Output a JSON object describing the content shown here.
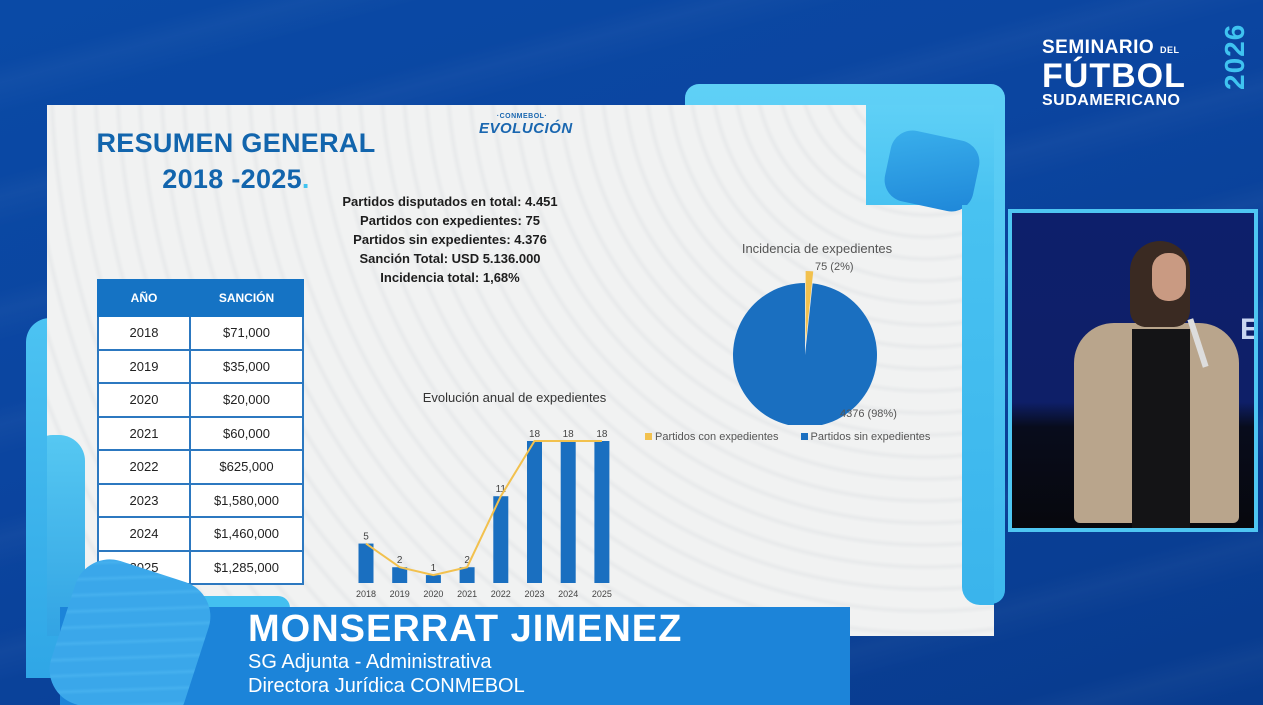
{
  "event_brand": {
    "line1": "SEMINARIO",
    "line1_suffix": "DEL",
    "line2": "FÚTBOL",
    "line3": "SUDAMERICANO",
    "year": "2026"
  },
  "slide": {
    "title_line1": "RESUMEN GENERAL",
    "title_line2": "2018 -2025",
    "title_dot": ".",
    "logo_top": "·CONMEBOL·",
    "logo_bottom": "EVOLUCIÓN",
    "stats": [
      "Partidos disputados en total: 4.451",
      "Partidos con expedientes: 75",
      "Partidos sin expedientes: 4.376",
      "Sanción Total: USD 5.136.000",
      "Incidencia total: 1,68%"
    ],
    "table": {
      "headers": [
        "AÑO",
        "SANCIÓN"
      ],
      "rows": [
        [
          "2018",
          "$71,000"
        ],
        [
          "2019",
          "$35,000"
        ],
        [
          "2020",
          "$20,000"
        ],
        [
          "2021",
          "$60,000"
        ],
        [
          "2022",
          "$625,000"
        ],
        [
          "2023",
          "$1,580,000"
        ],
        [
          "2024",
          "$1,460,000"
        ],
        [
          "2025",
          "$1,285,000"
        ]
      ]
    }
  },
  "chart_data": [
    {
      "type": "bar",
      "title": "Evolución anual de expedientes",
      "categories": [
        "2018",
        "2019",
        "2020",
        "2021",
        "2022",
        "2023",
        "2024",
        "2025"
      ],
      "values": [
        5,
        2,
        1,
        2,
        11,
        18,
        18,
        18
      ],
      "overlay_line": true,
      "bar_color": "#1a6fc0",
      "line_color": "#f2c14e",
      "xlabel": "",
      "ylabel": "",
      "ylim": [
        0,
        20
      ],
      "grid": false,
      "data_labels": true
    },
    {
      "type": "pie",
      "title": "Incidencia de expedientes",
      "categories": [
        "Partidos con expedientes",
        "Partidos sin expedientes"
      ],
      "values": [
        75,
        4376
      ],
      "labels": [
        "75 (2%)",
        "4376 (98%)"
      ],
      "colors": [
        "#f2c14e",
        "#1a6fc0"
      ],
      "legend_position": "bottom"
    }
  ],
  "lower_third": {
    "name": "MONSERRAT JIMENEZ",
    "role_line1": "SG Adjunta - Administrativa",
    "role_line2": "Directora Jurídica CONMEBOL"
  },
  "colors": {
    "background": "#0a4aa6",
    "accent_light": "#3fc3f0",
    "slide_title": "#1265ad",
    "table_header": "#1573c4",
    "lower_third": "#1c84d9"
  }
}
